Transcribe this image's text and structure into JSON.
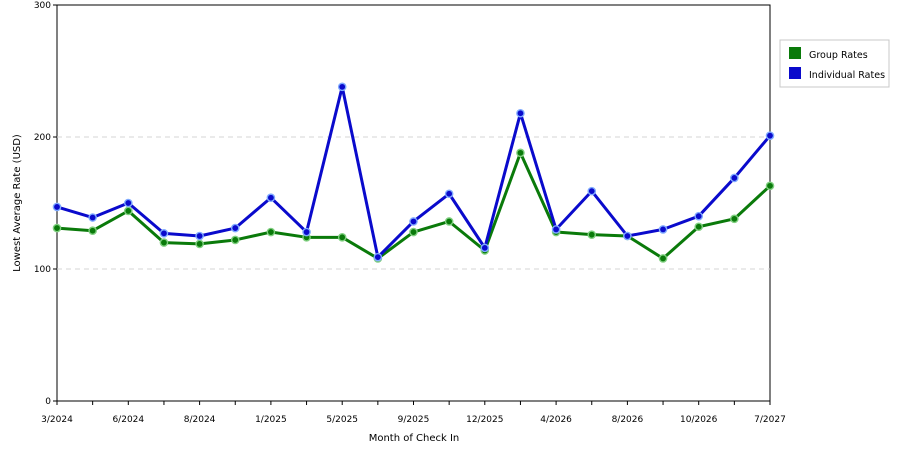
{
  "chart_data": {
    "type": "line",
    "xlabel": "Month of Check In",
    "ylabel": "Lowest Average Rate (USD)",
    "ylim": [
      0,
      300
    ],
    "yticks": [
      0,
      100,
      200,
      300
    ],
    "grid": "horizontal dashed",
    "legend_placement": "right",
    "x": [
      "3/2024",
      "4/2024",
      "6/2024",
      "7/2024",
      "8/2024",
      "10/2024",
      "1/2025",
      "3/2025",
      "5/2025",
      "7/2025",
      "9/2025",
      "10/2025",
      "12/2025",
      "2/2026",
      "4/2026",
      "6/2026",
      "8/2026",
      "9/2026",
      "10/2026",
      "11/2026",
      "7/2027"
    ],
    "x_tick_labels": [
      "3/2024",
      "6/2024",
      "8/2024",
      "1/2025",
      "5/2025",
      "9/2025",
      "12/2025",
      "4/2026",
      "8/2026",
      "10/2026",
      "7/2027"
    ],
    "x_tick_indices": [
      0,
      2,
      4,
      6,
      8,
      10,
      12,
      14,
      16,
      18,
      20
    ],
    "series": [
      {
        "name": "Group Rates",
        "color": "#0a7a0a",
        "values": [
          131,
          129,
          144,
          120,
          119,
          122,
          128,
          124,
          124,
          108,
          128,
          136,
          114,
          188,
          128,
          126,
          125,
          108,
          132,
          138,
          163
        ]
      },
      {
        "name": "Individual Rates",
        "color": "#0a0acc",
        "values": [
          147,
          139,
          150,
          127,
          125,
          131,
          154,
          128,
          238,
          109,
          136,
          157,
          116,
          218,
          130,
          159,
          125,
          130,
          140,
          169,
          201
        ]
      }
    ]
  }
}
